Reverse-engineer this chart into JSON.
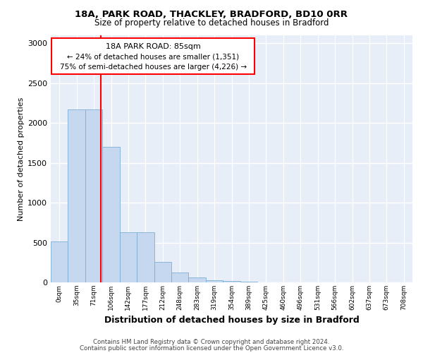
{
  "title1": "18A, PARK ROAD, THACKLEY, BRADFORD, BD10 0RR",
  "title2": "Size of property relative to detached houses in Bradford",
  "xlabel": "Distribution of detached houses by size in Bradford",
  "ylabel": "Number of detached properties",
  "footer1": "Contains HM Land Registry data © Crown copyright and database right 2024.",
  "footer2": "Contains public sector information licensed under the Open Government Licence v3.0.",
  "annotation_line1": "18A PARK ROAD: 85sqm",
  "annotation_line2": "← 24% of detached houses are smaller (1,351)",
  "annotation_line3": "75% of semi-detached houses are larger (4,226) →",
  "bar_labels": [
    "0sqm",
    "35sqm",
    "71sqm",
    "106sqm",
    "142sqm",
    "177sqm",
    "212sqm",
    "248sqm",
    "283sqm",
    "319sqm",
    "354sqm",
    "389sqm",
    "425sqm",
    "460sqm",
    "496sqm",
    "531sqm",
    "566sqm",
    "602sqm",
    "637sqm",
    "673sqm",
    "708sqm"
  ],
  "bar_values": [
    510,
    2170,
    2170,
    1700,
    630,
    630,
    255,
    120,
    65,
    30,
    15,
    8,
    4,
    2,
    1,
    0,
    0,
    0,
    0,
    0,
    0
  ],
  "bar_color": "#c5d8f0",
  "bar_edge_color": "#7bafd4",
  "ylim": [
    0,
    3100
  ],
  "yticks": [
    0,
    500,
    1000,
    1500,
    2000,
    2500,
    3000
  ],
  "background_color": "#e8eef8",
  "grid_color": "#ffffff"
}
